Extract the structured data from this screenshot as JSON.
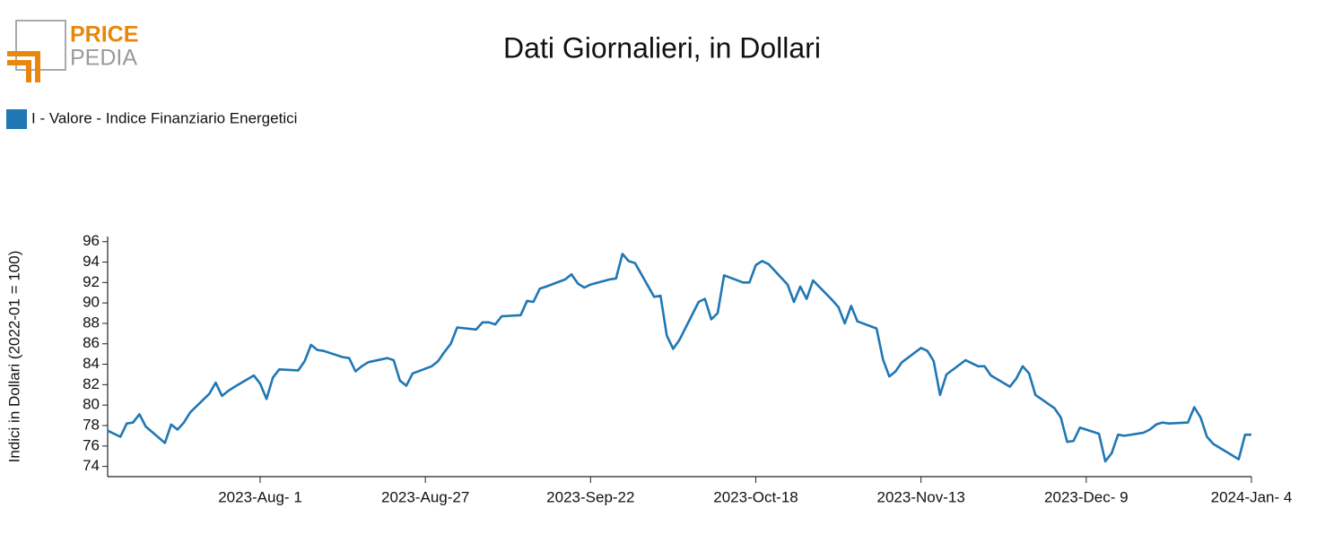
{
  "logo": {
    "top": "PRICE",
    "bottom": "PEDIA"
  },
  "chart_data": {
    "type": "line",
    "title": "Dati Giornalieri, in Dollari",
    "y_label": "Indici in Dollari (2022-01 = 100)",
    "x": [
      "2023-07-08",
      "2023-07-10",
      "2023-07-11",
      "2023-07-12",
      "2023-07-13",
      "2023-07-14",
      "2023-07-17",
      "2023-07-18",
      "2023-07-19",
      "2023-07-20",
      "2023-07-21",
      "2023-07-24",
      "2023-07-25",
      "2023-07-26",
      "2023-07-27",
      "2023-07-28",
      "2023-07-31",
      "2023-08-01",
      "2023-08-02",
      "2023-08-03",
      "2023-08-04",
      "2023-08-07",
      "2023-08-08",
      "2023-08-09",
      "2023-08-10",
      "2023-08-11",
      "2023-08-14",
      "2023-08-15",
      "2023-08-16",
      "2023-08-17",
      "2023-08-18",
      "2023-08-21",
      "2023-08-22",
      "2023-08-23",
      "2023-08-24",
      "2023-08-25",
      "2023-08-28",
      "2023-08-29",
      "2023-08-30",
      "2023-08-31",
      "2023-09-01",
      "2023-09-04",
      "2023-09-05",
      "2023-09-06",
      "2023-09-07",
      "2023-09-08",
      "2023-09-11",
      "2023-09-12",
      "2023-09-13",
      "2023-09-14",
      "2023-09-15",
      "2023-09-18",
      "2023-09-19",
      "2023-09-20",
      "2023-09-21",
      "2023-09-22",
      "2023-09-25",
      "2023-09-26",
      "2023-09-27",
      "2023-09-28",
      "2023-09-29",
      "2023-10-02",
      "2023-10-03",
      "2023-10-04",
      "2023-10-05",
      "2023-10-06",
      "2023-10-09",
      "2023-10-10",
      "2023-10-11",
      "2023-10-12",
      "2023-10-13",
      "2023-10-16",
      "2023-10-17",
      "2023-10-18",
      "2023-10-19",
      "2023-10-20",
      "2023-10-23",
      "2023-10-24",
      "2023-10-25",
      "2023-10-26",
      "2023-10-27",
      "2023-10-30",
      "2023-10-31",
      "2023-11-01",
      "2023-11-02",
      "2023-11-03",
      "2023-11-06",
      "2023-11-07",
      "2023-11-08",
      "2023-11-09",
      "2023-11-10",
      "2023-11-13",
      "2023-11-14",
      "2023-11-15",
      "2023-11-16",
      "2023-11-17",
      "2023-11-20",
      "2023-11-21",
      "2023-11-22",
      "2023-11-23",
      "2023-11-24",
      "2023-11-27",
      "2023-11-28",
      "2023-11-29",
      "2023-11-30",
      "2023-12-01",
      "2023-12-04",
      "2023-12-05",
      "2023-12-06",
      "2023-12-07",
      "2023-12-08",
      "2023-12-11",
      "2023-12-12",
      "2023-12-13",
      "2023-12-14",
      "2023-12-15",
      "2023-12-18",
      "2023-12-19",
      "2023-12-20",
      "2023-12-21",
      "2023-12-22",
      "2023-12-25",
      "2023-12-26",
      "2023-12-27",
      "2023-12-28",
      "2023-12-29",
      "2024-01-02",
      "2024-01-03",
      "2024-01-04"
    ],
    "series": [
      {
        "name": "I - Valore - Indice Finanziario Energetici",
        "color": "#1f77b4",
        "values": [
          77.5,
          76.9,
          78.2,
          78.3,
          79.1,
          77.9,
          76.3,
          78.1,
          77.6,
          78.3,
          79.3,
          81.1,
          82.2,
          80.9,
          81.4,
          81.8,
          82.9,
          82.1,
          80.6,
          82.7,
          83.5,
          83.4,
          84.3,
          85.9,
          85.4,
          85.3,
          84.7,
          84.6,
          83.3,
          83.8,
          84.2,
          84.6,
          84.4,
          82.4,
          81.9,
          83.1,
          83.8,
          84.3,
          85.2,
          86.0,
          87.6,
          87.4,
          88.1,
          88.1,
          87.9,
          88.7,
          88.8,
          90.2,
          90.1,
          91.4,
          91.6,
          92.3,
          92.8,
          91.9,
          91.5,
          91.8,
          92.3,
          92.4,
          94.8,
          94.1,
          93.9,
          90.6,
          90.7,
          86.8,
          85.5,
          86.4,
          90.1,
          90.4,
          88.4,
          89.0,
          92.7,
          92.0,
          92.0,
          93.7,
          94.1,
          93.8,
          91.8,
          90.1,
          91.6,
          90.4,
          92.2,
          90.3,
          89.6,
          88.0,
          89.7,
          88.2,
          87.5,
          84.5,
          82.8,
          83.3,
          84.2,
          85.6,
          85.3,
          84.3,
          81.0,
          83.0,
          84.4,
          84.1,
          83.8,
          83.8,
          82.9,
          81.8,
          82.6,
          83.8,
          83.1,
          81.0,
          79.7,
          78.8,
          76.4,
          76.5,
          77.8,
          77.2,
          74.5,
          75.3,
          77.1,
          77.0,
          77.3,
          77.6,
          78.1,
          78.3,
          78.2,
          78.3,
          79.8,
          78.8,
          76.9,
          76.2,
          74.7,
          77.1,
          77.1
        ]
      }
    ],
    "xlim": [
      "2023-07-08",
      "2024-01-04"
    ],
    "xticks": [
      {
        "value": "2023-08-01",
        "label": "2023-Aug- 1"
      },
      {
        "value": "2023-08-27",
        "label": "2023-Aug-27"
      },
      {
        "value": "2023-09-22",
        "label": "2023-Sep-22"
      },
      {
        "value": "2023-10-18",
        "label": "2023-Oct-18"
      },
      {
        "value": "2023-11-13",
        "label": "2023-Nov-13"
      },
      {
        "value": "2023-12-09",
        "label": "2023-Dec- 9"
      },
      {
        "value": "2024-01-04",
        "label": "2024-Jan- 4"
      }
    ],
    "ylim": [
      73,
      96.5
    ],
    "yticks": [
      74,
      76,
      78,
      80,
      82,
      84,
      86,
      88,
      90,
      92,
      94,
      96
    ],
    "legend": "top-left",
    "grid": false
  }
}
